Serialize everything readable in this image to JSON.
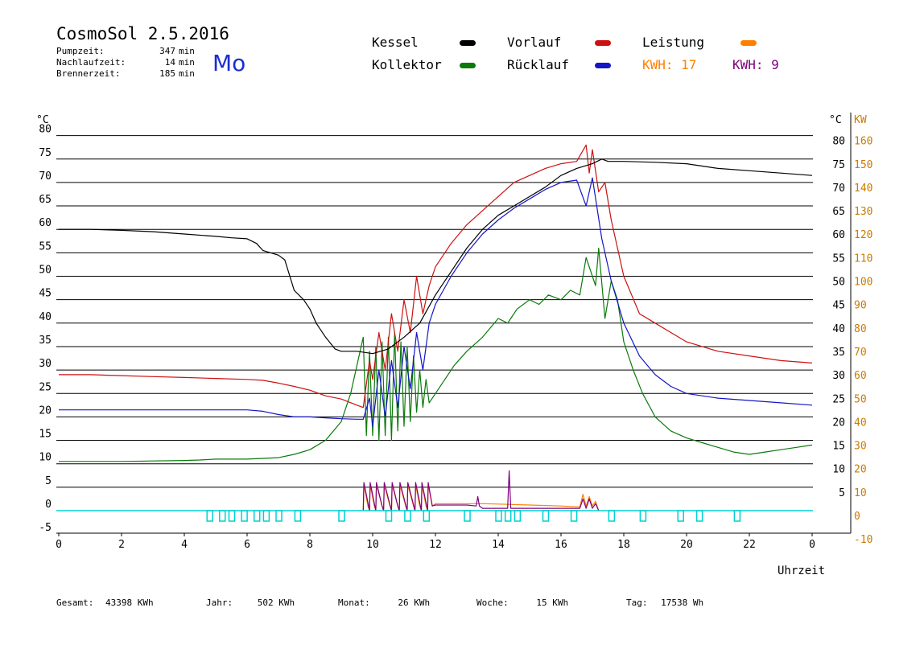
{
  "header": {
    "title": "CosmoSol 2.5.2016",
    "weekday": "Mo",
    "stats": [
      {
        "label": "Pumpzeit:",
        "value": "347",
        "unit": "min"
      },
      {
        "label": "Nachlaufzeit:",
        "value": "14",
        "unit": "min"
      },
      {
        "label": "Brennerzeit:",
        "value": "185",
        "unit": "min"
      }
    ]
  },
  "legend": {
    "kessel": "Kessel",
    "kollektor": "Kollektor",
    "vorlauf": "Vorlauf",
    "ruecklauf": "Rücklauf",
    "leistung": "Leistung",
    "kwh1": "KWH: 17",
    "kwh2": "KWH: 9"
  },
  "colors": {
    "kessel": "#000000",
    "kollektor": "#0a7a0a",
    "vorlauf": "#cc1111",
    "ruecklauf": "#1515c8",
    "leistung": "#ff8000",
    "kwh2": "#800080",
    "pump": "#00d0d0",
    "right_axis": "#cc7a00"
  },
  "footer": {
    "gesamt_label": "Gesamt:",
    "gesamt_value": "43398 KWh",
    "jahr_label": "Jahr:",
    "jahr_value": "502 KWh",
    "monat_label": "Monat:",
    "monat_value": "26 KWh",
    "woche_label": "Woche:",
    "woche_value": "15 KWh",
    "tag_label": "Tag:",
    "tag_value": "17538 Wh"
  },
  "chart_data": {
    "type": "line",
    "xlabel": "Uhrzeit",
    "ylabel_left": "°C",
    "ylabel_right_1": "°C",
    "ylabel_right_2": "KW",
    "xlim": [
      0,
      24
    ],
    "ylim": [
      -5,
      80
    ],
    "grid": true,
    "x_ticks": [
      "0",
      "2",
      "4",
      "6",
      "8",
      "10",
      "12",
      "14",
      "16",
      "18",
      "20",
      "22",
      "0"
    ],
    "y_ticks_left": [
      -5,
      0,
      5,
      10,
      15,
      20,
      25,
      30,
      35,
      40,
      45,
      50,
      55,
      60,
      65,
      70,
      75,
      80
    ],
    "y_ticks_right_c": [
      5,
      10,
      15,
      20,
      25,
      30,
      35,
      40,
      45,
      50,
      55,
      60,
      65,
      70,
      75,
      80
    ],
    "y_ticks_right_kw": [
      -10,
      0,
      10,
      20,
      30,
      40,
      50,
      60,
      70,
      80,
      90,
      100,
      110,
      120,
      130,
      140,
      150,
      160
    ],
    "series": [
      {
        "name": "Kessel",
        "key": "kessel",
        "x": [
          0,
          1,
          2,
          3,
          4,
          5,
          5.5,
          6,
          6.3,
          6.5,
          7,
          7.2,
          7.5,
          7.8,
          8,
          8.2,
          8.5,
          8.8,
          9,
          9.5,
          10,
          10.5,
          11,
          11.5,
          12,
          12.5,
          13,
          13.5,
          14,
          14.5,
          15,
          15.5,
          16,
          16.5,
          17,
          17.3,
          17.5,
          18,
          19,
          20,
          21,
          22,
          23,
          24
        ],
        "y": [
          60,
          60,
          59.8,
          59.5,
          59,
          58.5,
          58.2,
          58,
          57,
          55.5,
          54.5,
          53.5,
          47,
          45,
          43,
          40,
          37,
          34.5,
          34,
          34,
          33.5,
          34.5,
          37,
          40,
          46,
          51,
          56,
          60,
          63,
          65,
          67,
          69,
          71.5,
          73,
          74,
          75,
          74.5,
          74.5,
          74.3,
          74,
          73,
          72.5,
          72,
          71.5
        ]
      },
      {
        "name": "Vorlauf",
        "key": "vorlauf",
        "x": [
          0,
          1,
          2,
          3,
          4,
          5,
          6,
          6.5,
          7,
          7.5,
          8,
          8.5,
          9,
          9.5,
          9.7,
          9.9,
          10,
          10.2,
          10.4,
          10.6,
          10.8,
          11,
          11.2,
          11.4,
          11.6,
          11.8,
          12,
          12.5,
          13,
          13.5,
          14,
          14.5,
          15,
          15.5,
          16,
          16.5,
          16.8,
          16.9,
          17,
          17.2,
          17.4,
          17.6,
          18,
          18.5,
          19,
          19.5,
          20,
          21,
          22,
          23,
          24
        ],
        "y": [
          29,
          29,
          28.8,
          28.6,
          28.4,
          28.2,
          28,
          27.8,
          27.2,
          26.5,
          25.7,
          24.5,
          23.8,
          22.5,
          22,
          32,
          28,
          38,
          30,
          42,
          34,
          45,
          38,
          50,
          42,
          48,
          52,
          57,
          61,
          64,
          67,
          70,
          71.5,
          73,
          74,
          74.5,
          78,
          72,
          77,
          68,
          70,
          62,
          50,
          42,
          40,
          38,
          36,
          34,
          33,
          32,
          31.5
        ]
      },
      {
        "name": "Rücklauf",
        "key": "ruecklauf",
        "x": [
          0,
          1,
          2,
          3,
          4,
          5,
          6,
          6.5,
          7,
          7.5,
          8,
          8.5,
          9,
          9.5,
          9.7,
          9.9,
          10,
          10.2,
          10.4,
          10.6,
          10.8,
          11,
          11.2,
          11.4,
          11.6,
          11.8,
          12,
          12.5,
          13,
          13.5,
          14,
          14.5,
          15,
          15.5,
          16,
          16.5,
          16.8,
          17,
          17.3,
          17.6,
          18,
          18.5,
          19,
          19.5,
          20,
          21,
          22,
          23,
          24
        ],
        "y": [
          21.5,
          21.5,
          21.5,
          21.5,
          21.5,
          21.5,
          21.5,
          21.2,
          20.5,
          20,
          20,
          19.8,
          19.6,
          19.5,
          19.5,
          24,
          18,
          30,
          20,
          32,
          22,
          35,
          26,
          38,
          30,
          40,
          44,
          50,
          55,
          59,
          62,
          64.5,
          66.5,
          68.5,
          70,
          70.5,
          65,
          71,
          58,
          49,
          40,
          33,
          29,
          26.5,
          25,
          24,
          23.5,
          23,
          22.5
        ]
      },
      {
        "name": "Kollektor",
        "key": "kollektor",
        "x": [
          0,
          1,
          2,
          3,
          4,
          4.5,
          5,
          6,
          7,
          7.5,
          8,
          8.5,
          9,
          9.3,
          9.6,
          9.7,
          9.8,
          9.9,
          10,
          10.1,
          10.2,
          10.3,
          10.4,
          10.5,
          10.6,
          10.7,
          10.8,
          10.9,
          11,
          11.1,
          11.2,
          11.3,
          11.4,
          11.5,
          11.6,
          11.7,
          11.8,
          12,
          12.3,
          12.6,
          13,
          13.5,
          14,
          14.3,
          14.6,
          15,
          15.3,
          15.6,
          16,
          16.3,
          16.6,
          16.8,
          17,
          17.1,
          17.2,
          17.4,
          17.6,
          17.8,
          18,
          18.3,
          18.6,
          19,
          19.5,
          20,
          20.5,
          21,
          21.5,
          22,
          22.5,
          23,
          23.5,
          24
        ],
        "y": [
          10.5,
          10.5,
          10.5,
          10.6,
          10.7,
          10.8,
          11,
          11,
          11.3,
          12,
          13,
          15,
          19,
          25,
          34,
          37,
          16,
          34,
          16,
          35,
          15,
          36,
          16,
          37,
          15,
          38,
          17,
          36,
          18,
          35,
          19,
          33,
          21,
          30,
          22,
          28,
          23,
          25,
          28,
          31,
          34,
          37,
          41,
          40,
          43,
          45,
          44,
          46,
          45,
          47,
          46,
          54,
          50,
          48,
          56,
          41,
          49,
          45,
          36,
          30,
          25,
          20,
          17,
          15.5,
          14.5,
          13.5,
          12.5,
          12,
          12.5,
          13,
          13.5,
          14
        ]
      },
      {
        "name": "Leistung",
        "key": "leistung",
        "x": [
          9.7,
          9.72,
          9.85,
          9.9,
          9.92,
          10.05,
          10.1,
          10.12,
          10.3,
          10.35,
          10.37,
          10.55,
          10.6,
          10.62,
          10.8,
          10.85,
          10.87,
          11.05,
          11.1,
          11.12,
          11.3,
          11.35,
          11.37,
          11.5,
          11.55,
          11.57,
          11.7,
          11.75,
          11.77,
          11.9,
          12,
          13,
          13.5,
          14,
          15,
          16,
          16.6,
          16.7,
          16.8,
          16.9,
          17,
          17.1,
          17.2
        ],
        "y": [
          0,
          5.5,
          1,
          0,
          5.5,
          1,
          0,
          5.5,
          1,
          0,
          5.5,
          1,
          0,
          5.5,
          1,
          0,
          5.5,
          1,
          0,
          5.5,
          1,
          0,
          5.5,
          1,
          0,
          5.5,
          1,
          0,
          5.5,
          1,
          1.5,
          1.5,
          1.5,
          1.4,
          1.2,
          1,
          0.8,
          3.5,
          1,
          3,
          1,
          2,
          0
        ]
      },
      {
        "name": "KWH: 9",
        "key": "kwh2",
        "x": [
          9.7,
          9.72,
          9.9,
          9.92,
          10.1,
          10.12,
          10.3,
          10.35,
          10.37,
          10.6,
          10.62,
          10.8,
          10.85,
          10.87,
          11.1,
          11.12,
          11.35,
          11.37,
          11.55,
          11.57,
          11.75,
          11.77,
          11.9,
          12,
          13,
          13.3,
          13.35,
          13.4,
          13.5,
          14,
          14.3,
          14.35,
          14.4,
          14.5,
          15,
          16,
          16.6,
          16.7,
          16.8,
          16.9,
          17,
          17.1,
          17.2
        ],
        "y": [
          0,
          6,
          0,
          6,
          0,
          6,
          1,
          0,
          6,
          0,
          6,
          1,
          0,
          6,
          0,
          6,
          0,
          6,
          0,
          6,
          0,
          6,
          1,
          1.2,
          1.2,
          1,
          3,
          1,
          0.5,
          0.5,
          0.5,
          8.5,
          0.5,
          0.5,
          0.5,
          0.5,
          0.5,
          2.5,
          0.5,
          2.5,
          0.5,
          1.5,
          0
        ]
      }
    ],
    "pump_markers": [
      4.8,
      5.2,
      5.5,
      5.9,
      6.3,
      6.6,
      7.0,
      7.6,
      9.0,
      10.5,
      11.1,
      11.7,
      13.0,
      14.0,
      14.3,
      14.6,
      15.5,
      16.4,
      17.6,
      18.6,
      19.8,
      20.4,
      21.6
    ]
  }
}
